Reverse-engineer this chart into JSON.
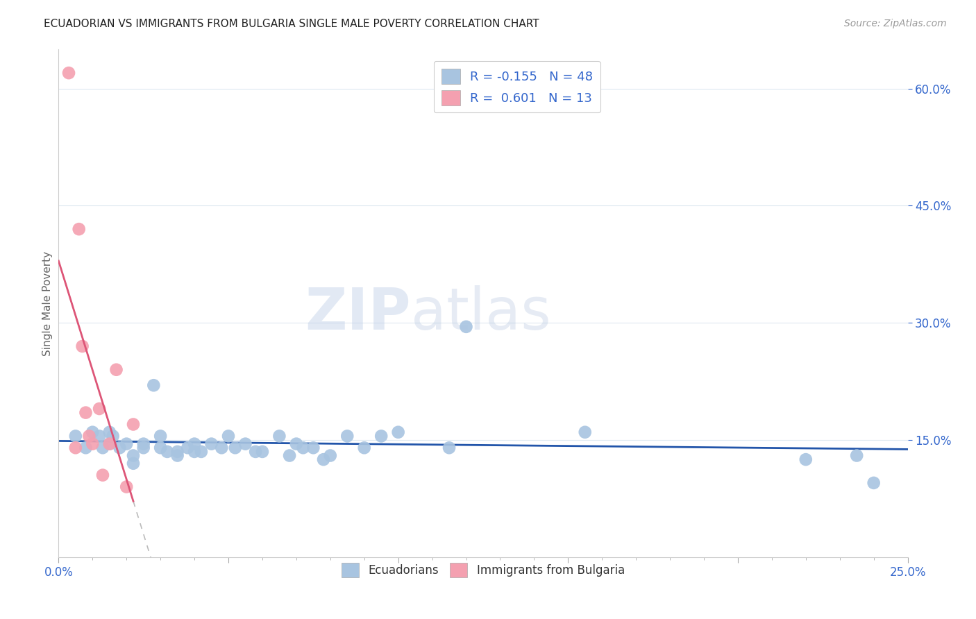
{
  "title": "ECUADORIAN VS IMMIGRANTS FROM BULGARIA SINGLE MALE POVERTY CORRELATION CHART",
  "source": "Source: ZipAtlas.com",
  "ylabel": "Single Male Poverty",
  "xlabel": "",
  "xlim": [
    0.0,
    25.0
  ],
  "ylim": [
    0.0,
    65.0
  ],
  "xticks_major": [
    0.0,
    5.0,
    10.0,
    15.0,
    20.0,
    25.0
  ],
  "xtick_labels_show": [
    "0.0%",
    "",
    "",
    "",
    "",
    "25.0%"
  ],
  "yticks": [
    15.0,
    30.0,
    45.0,
    60.0
  ],
  "ytick_labels": [
    "15.0%",
    "30.0%",
    "45.0%",
    "60.0%"
  ],
  "blue_R": -0.155,
  "blue_N": 48,
  "pink_R": 0.601,
  "pink_N": 13,
  "blue_color": "#a8c4e0",
  "pink_color": "#f4a0b0",
  "blue_line_color": "#2255aa",
  "pink_line_color": "#dd5577",
  "blue_scatter": [
    [
      0.5,
      15.5
    ],
    [
      0.8,
      14.0
    ],
    [
      1.0,
      16.0
    ],
    [
      1.2,
      15.5
    ],
    [
      1.3,
      14.0
    ],
    [
      1.5,
      14.5
    ],
    [
      1.5,
      16.0
    ],
    [
      1.6,
      15.5
    ],
    [
      1.8,
      14.0
    ],
    [
      2.0,
      14.5
    ],
    [
      2.2,
      12.0
    ],
    [
      2.2,
      13.0
    ],
    [
      2.5,
      14.5
    ],
    [
      2.5,
      14.0
    ],
    [
      2.8,
      22.0
    ],
    [
      3.0,
      15.5
    ],
    [
      3.0,
      14.0
    ],
    [
      3.2,
      13.5
    ],
    [
      3.5,
      13.5
    ],
    [
      3.5,
      13.0
    ],
    [
      3.8,
      14.0
    ],
    [
      4.0,
      14.5
    ],
    [
      4.0,
      13.5
    ],
    [
      4.2,
      13.5
    ],
    [
      4.5,
      14.5
    ],
    [
      4.8,
      14.0
    ],
    [
      5.0,
      15.5
    ],
    [
      5.2,
      14.0
    ],
    [
      5.5,
      14.5
    ],
    [
      5.8,
      13.5
    ],
    [
      6.0,
      13.5
    ],
    [
      6.5,
      15.5
    ],
    [
      6.8,
      13.0
    ],
    [
      7.0,
      14.5
    ],
    [
      7.2,
      14.0
    ],
    [
      7.5,
      14.0
    ],
    [
      7.8,
      12.5
    ],
    [
      8.0,
      13.0
    ],
    [
      8.5,
      15.5
    ],
    [
      9.0,
      14.0
    ],
    [
      9.5,
      15.5
    ],
    [
      10.0,
      16.0
    ],
    [
      11.5,
      14.0
    ],
    [
      12.0,
      29.5
    ],
    [
      15.5,
      16.0
    ],
    [
      22.0,
      12.5
    ],
    [
      23.5,
      13.0
    ],
    [
      24.0,
      9.5
    ]
  ],
  "pink_scatter": [
    [
      0.3,
      62.0
    ],
    [
      0.5,
      14.0
    ],
    [
      0.6,
      42.0
    ],
    [
      0.7,
      27.0
    ],
    [
      0.8,
      18.5
    ],
    [
      0.9,
      15.5
    ],
    [
      1.0,
      14.5
    ],
    [
      1.2,
      19.0
    ],
    [
      1.3,
      10.5
    ],
    [
      1.5,
      14.5
    ],
    [
      1.7,
      24.0
    ],
    [
      2.0,
      9.0
    ],
    [
      2.2,
      17.0
    ]
  ],
  "watermark_zip": "ZIP",
  "watermark_atlas": "atlas",
  "background_color": "#ffffff",
  "grid_color": "#dde8f0"
}
